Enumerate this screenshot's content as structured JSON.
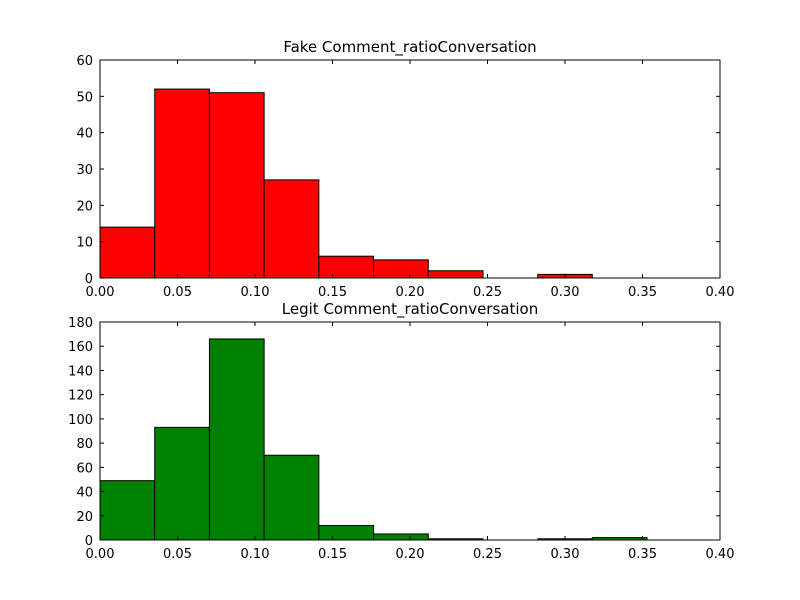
{
  "chart_data": [
    {
      "type": "bar",
      "title": "Fake Comment_ratioConversation",
      "xlabel": "",
      "ylabel": "",
      "xlim": [
        0.0,
        0.4
      ],
      "ylim": [
        0,
        60
      ],
      "xticks": [
        "0.00",
        "0.05",
        "0.10",
        "0.15",
        "0.20",
        "0.25",
        "0.30",
        "0.35",
        "0.40"
      ],
      "yticks": [
        "0",
        "10",
        "20",
        "30",
        "40",
        "50",
        "60"
      ],
      "color": "#ff0000",
      "bins": [
        {
          "x0": 0.0,
          "x1": 0.0353,
          "count": 14
        },
        {
          "x0": 0.0353,
          "x1": 0.0706,
          "count": 52
        },
        {
          "x0": 0.0706,
          "x1": 0.1059,
          "count": 51
        },
        {
          "x0": 0.1059,
          "x1": 0.1412,
          "count": 27
        },
        {
          "x0": 0.1412,
          "x1": 0.1765,
          "count": 6
        },
        {
          "x0": 0.1765,
          "x1": 0.2118,
          "count": 5
        },
        {
          "x0": 0.2118,
          "x1": 0.2471,
          "count": 2
        },
        {
          "x0": 0.2471,
          "x1": 0.2824,
          "count": 0
        },
        {
          "x0": 0.2824,
          "x1": 0.3176,
          "count": 1
        },
        {
          "x0": 0.3176,
          "x1": 0.3529,
          "count": 0
        }
      ],
      "grid": false
    },
    {
      "type": "bar",
      "title": "Legit Comment_ratioConversation",
      "xlabel": "",
      "ylabel": "",
      "xlim": [
        0.0,
        0.4
      ],
      "ylim": [
        0,
        180
      ],
      "xticks": [
        "0.00",
        "0.05",
        "0.10",
        "0.15",
        "0.20",
        "0.25",
        "0.30",
        "0.35",
        "0.40"
      ],
      "yticks": [
        "0",
        "20",
        "40",
        "60",
        "80",
        "100",
        "120",
        "140",
        "160",
        "180"
      ],
      "color": "#008000",
      "bins": [
        {
          "x0": 0.0,
          "x1": 0.0353,
          "count": 49
        },
        {
          "x0": 0.0353,
          "x1": 0.0706,
          "count": 93
        },
        {
          "x0": 0.0706,
          "x1": 0.1059,
          "count": 166
        },
        {
          "x0": 0.1059,
          "x1": 0.1412,
          "count": 70
        },
        {
          "x0": 0.1412,
          "x1": 0.1765,
          "count": 12
        },
        {
          "x0": 0.1765,
          "x1": 0.2118,
          "count": 5
        },
        {
          "x0": 0.2118,
          "x1": 0.2471,
          "count": 1
        },
        {
          "x0": 0.2471,
          "x1": 0.2824,
          "count": 0
        },
        {
          "x0": 0.2824,
          "x1": 0.3176,
          "count": 1
        },
        {
          "x0": 0.3176,
          "x1": 0.3529,
          "count": 2
        }
      ],
      "grid": false
    }
  ]
}
